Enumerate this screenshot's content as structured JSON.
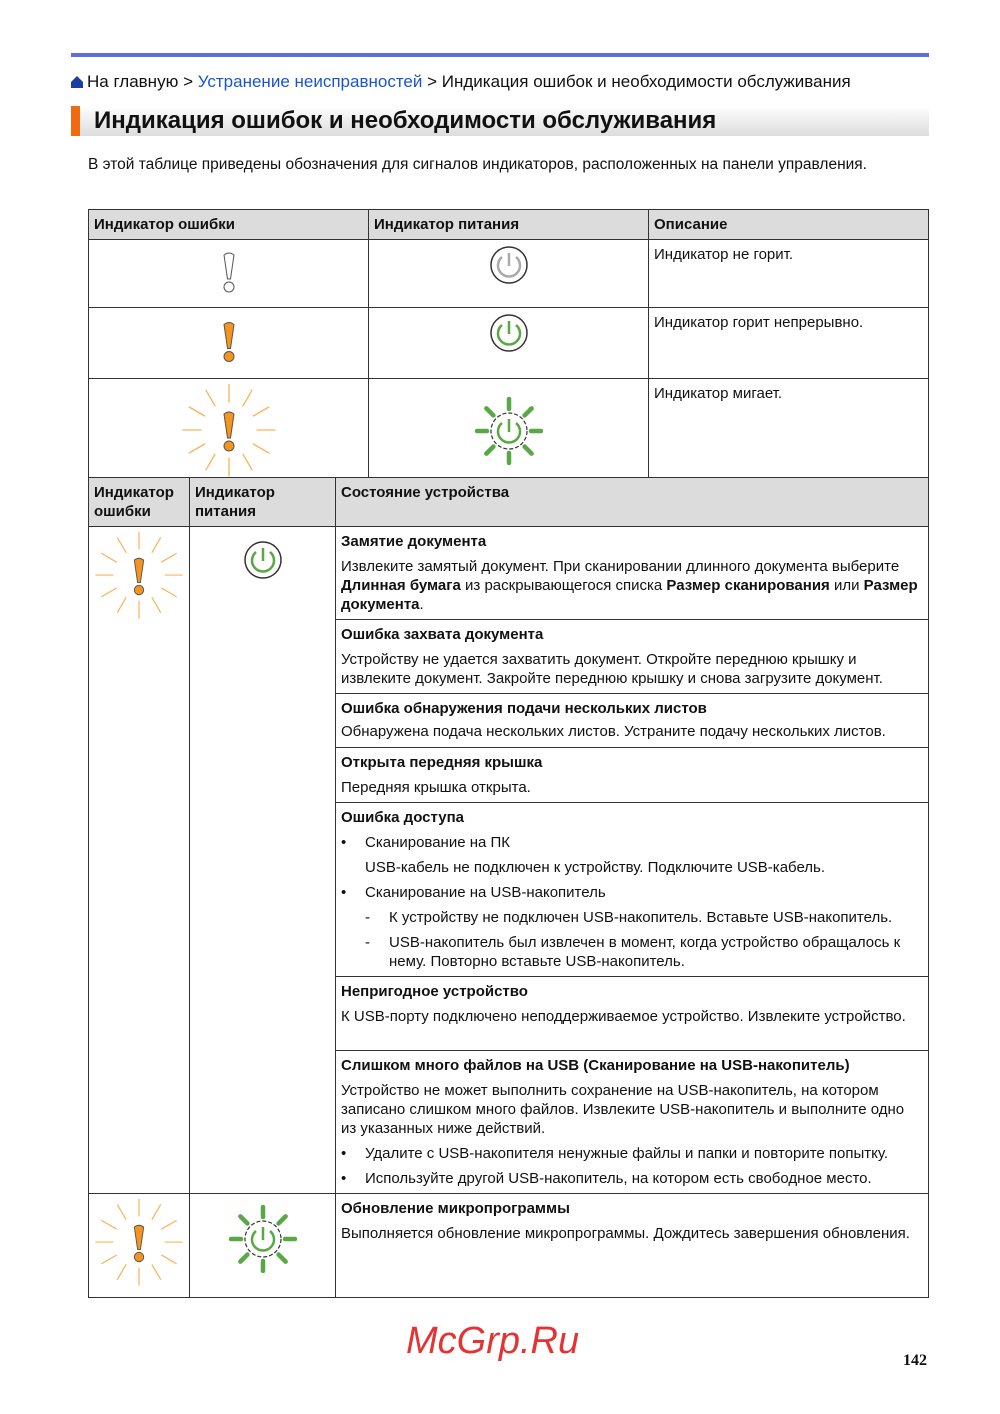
{
  "breadcrumb": {
    "home": "На главную",
    "sep": ">",
    "link": "Устранение неисправностей",
    "current": "Индикация ошибок и необходимости обслуживания"
  },
  "title": "Индикация ошибок и необходимости обслуживания",
  "intro": "В этой таблице приведены обозначения для сигналов индикаторов, расположенных на панели управления.",
  "table1": {
    "headers": [
      "Индикатор ошибки",
      "Индикатор питания",
      "Описание"
    ],
    "rows": [
      {
        "error_icon": "error-off",
        "power_icon": "power-off",
        "desc": "Индикатор не горит."
      },
      {
        "error_icon": "error-on",
        "power_icon": "power-on",
        "desc": "Индикатор горит непрерывно."
      },
      {
        "error_icon": "error-blink",
        "power_icon": "power-blink",
        "desc": "Индикатор мигает."
      }
    ]
  },
  "table2": {
    "headers": [
      "Индикатор ошибки",
      "Индикатор питания",
      "Состояние устройства"
    ],
    "s1": {
      "title": "Замятие документа",
      "t1": "Извлеките замятый документ. При сканировании длинного документа выберите ",
      "b1": "Длинная бумага",
      "t2": " из раскрывающегося списка ",
      "b2": "Размер сканирования",
      "t3": " или ",
      "b3": "Размер документа",
      "t4": "."
    },
    "s2": {
      "title": "Ошибка захвата документа",
      "text": "Устройству не удается захватить документ. Откройте переднюю крышку и извлеките документ. Закройте переднюю крышку и снова загрузите документ."
    },
    "s3": {
      "title": "Ошибка обнаружения подачи нескольких листов",
      "text": "Обнаружена подача нескольких листов. Устраните подачу нескольких листов."
    },
    "s4": {
      "title": "Открыта передняя крышка",
      "text": "Передняя крышка открыта."
    },
    "s5": {
      "title": "Ошибка доступа",
      "b1": "Сканирование на ПК",
      "b1_text": "USB-кабель не подключен к устройству. Подключите USB-кабель.",
      "b2": "Сканирование на USB-накопитель",
      "d1": "К устройству не подключен USB-накопитель. Вставьте USB-накопитель.",
      "d2": "USB-накопитель был извлечен в момент, когда устройство обращалось к нему. Повторно вставьте USB-накопитель."
    },
    "s6": {
      "title": "Непригодное устройство",
      "text": "К USB-порту подключено неподдерживаемое устройство. Извлеките устройство."
    },
    "s7": {
      "title": "Слишком много файлов на USB (Сканирование на USB-накопитель)",
      "text": "Устройство не может выполнить сохранение на USB-накопитель, на котором записано слишком много файлов. Извлеките USB-накопитель и выполните одно из указанных ниже действий.",
      "b1": "Удалите с USB-накопителя ненужные файлы и папки и повторите попытку.",
      "b2": "Используйте другой USB-накопитель, на котором есть свободное место."
    },
    "s8": {
      "title": "Обновление микропрограммы",
      "text": "Выполняется обновление микропрограммы. Дождитесь завершения обновления."
    }
  },
  "bullet": "•",
  "dash": "-",
  "watermark": "McGrp.Ru",
  "page_number": "142",
  "colors": {
    "accent": "#5b6fe0",
    "title_bar": "#f26a10",
    "link": "#1a56c8",
    "error_orange": "#f7941d",
    "power_green": "#5aa845"
  }
}
